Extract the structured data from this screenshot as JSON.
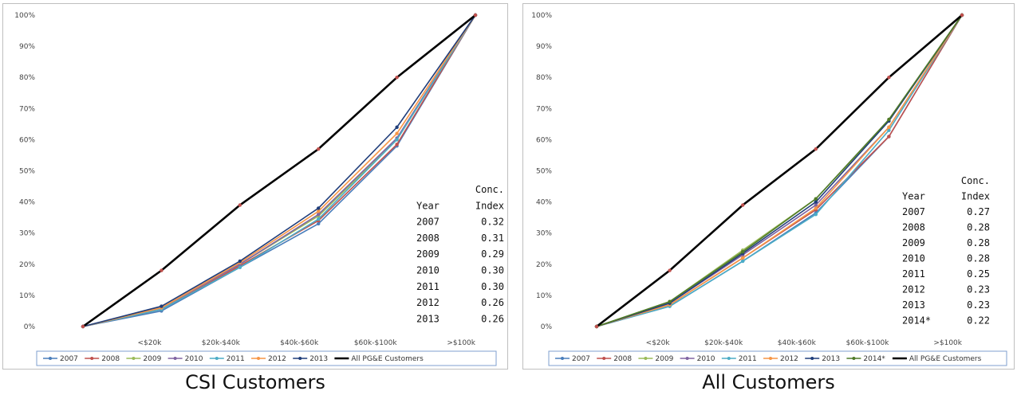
{
  "captions": {
    "left": "CSI Customers",
    "right": "All Customers"
  },
  "chart_data": [
    {
      "type": "line",
      "categories": [
        "",
        "<$20k",
        "$20k-$40k",
        "$40k-$60k",
        "$60k-$100k",
        ">$100k"
      ],
      "yticks": [
        "0%",
        "10%",
        "20%",
        "30%",
        "40%",
        "50%",
        "60%",
        "70%",
        "80%",
        "90%",
        "100%"
      ],
      "ylim": [
        0,
        100
      ],
      "legend_position": "bottom",
      "series": [
        {
          "name": "2007",
          "color": "#4a7ebb",
          "values": [
            0,
            5,
            19,
            33,
            58,
            100
          ]
        },
        {
          "name": "2008",
          "color": "#c0504d",
          "values": [
            0,
            5.5,
            19.5,
            34,
            58.5,
            100
          ]
        },
        {
          "name": "2009",
          "color": "#9bbb59",
          "values": [
            0,
            6,
            20,
            35.5,
            60,
            100
          ]
        },
        {
          "name": "2010",
          "color": "#8064a2",
          "values": [
            0,
            6,
            20,
            36,
            60.5,
            100
          ]
        },
        {
          "name": "2011",
          "color": "#4bacc6",
          "values": [
            0,
            5.5,
            19,
            34.5,
            60,
            100
          ]
        },
        {
          "name": "2012",
          "color": "#f79646",
          "values": [
            0,
            6,
            20.5,
            37,
            62,
            100
          ]
        },
        {
          "name": "2013",
          "color": "#1f3d7a",
          "values": [
            0,
            6.5,
            21,
            38,
            64,
            100
          ]
        },
        {
          "name": "All PG&E Customers",
          "color": "#000000",
          "values": [
            0,
            18,
            39,
            57,
            80,
            100
          ]
        }
      ],
      "table": {
        "headers": [
          [
            "",
            "Conc."
          ],
          [
            "Year",
            "Index"
          ]
        ],
        "rows": [
          [
            "2007",
            "0.32"
          ],
          [
            "2008",
            "0.31"
          ],
          [
            "2009",
            "0.29"
          ],
          [
            "2010",
            "0.30"
          ],
          [
            "2011",
            "0.30"
          ],
          [
            "2012",
            "0.26"
          ],
          [
            "2013",
            "0.26"
          ]
        ]
      }
    },
    {
      "type": "line",
      "categories": [
        "",
        "<$20k",
        "$20k-$40k",
        "$40k-$60k",
        "$60k-$100k",
        ">$100k"
      ],
      "yticks": [
        "0%",
        "10%",
        "20%",
        "30%",
        "40%",
        "50%",
        "60%",
        "70%",
        "80%",
        "90%",
        "100%"
      ],
      "ylim": [
        0,
        100
      ],
      "legend_position": "bottom",
      "series": [
        {
          "name": "2007",
          "color": "#4a7ebb",
          "values": [
            0,
            6.5,
            21,
            36.5,
            61,
            100
          ]
        },
        {
          "name": "2008",
          "color": "#c0504d",
          "values": [
            0,
            7,
            22,
            37.5,
            61,
            100
          ]
        },
        {
          "name": "2009",
          "color": "#9bbb59",
          "values": [
            0,
            8,
            24.5,
            41,
            66,
            100
          ]
        },
        {
          "name": "2010",
          "color": "#8064a2",
          "values": [
            0,
            7.5,
            23,
            39,
            64,
            100
          ]
        },
        {
          "name": "2011",
          "color": "#4bacc6",
          "values": [
            0,
            6.5,
            21,
            36,
            63,
            100
          ]
        },
        {
          "name": "2012",
          "color": "#f79646",
          "values": [
            0,
            7,
            22,
            38,
            64,
            100
          ]
        },
        {
          "name": "2013",
          "color": "#1f3d7a",
          "values": [
            0,
            7.5,
            23.5,
            40,
            66,
            100
          ]
        },
        {
          "name": "2014*",
          "color": "#4f7a28",
          "values": [
            0,
            8,
            24,
            41,
            66.5,
            100
          ]
        },
        {
          "name": "All PG&E Customers",
          "color": "#000000",
          "values": [
            0,
            18,
            39,
            57,
            80,
            100
          ]
        }
      ],
      "table": {
        "headers": [
          [
            "",
            "Conc."
          ],
          [
            "Year",
            "Index"
          ]
        ],
        "rows": [
          [
            "2007",
            "0.27"
          ],
          [
            "2008",
            "0.28"
          ],
          [
            "2009",
            "0.28"
          ],
          [
            "2010",
            "0.28"
          ],
          [
            "2011",
            "0.25"
          ],
          [
            "2012",
            "0.23"
          ],
          [
            "2013",
            "0.23"
          ],
          [
            "2014*",
            "0.22"
          ]
        ]
      }
    }
  ]
}
